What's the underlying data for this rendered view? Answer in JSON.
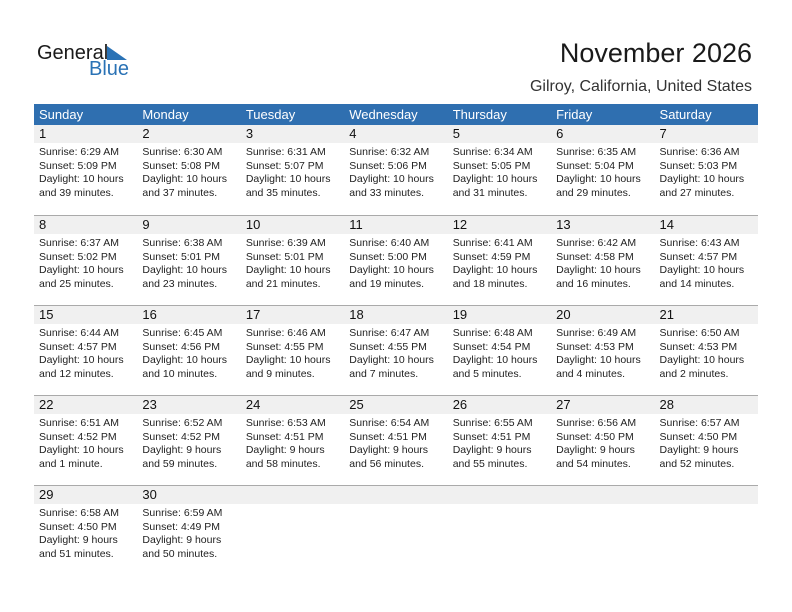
{
  "logo": {
    "word1": "General",
    "word2": "Blue"
  },
  "title": "November 2026",
  "location": "Gilroy, California, United States",
  "weekdays": [
    "Sunday",
    "Monday",
    "Tuesday",
    "Wednesday",
    "Thursday",
    "Friday",
    "Saturday"
  ],
  "weeks": [
    [
      {
        "d": "1",
        "sr": "Sunrise: 6:29 AM",
        "ss": "Sunset: 5:09 PM",
        "dl": "Daylight: 10 hours",
        "dm": "and 39 minutes."
      },
      {
        "d": "2",
        "sr": "Sunrise: 6:30 AM",
        "ss": "Sunset: 5:08 PM",
        "dl": "Daylight: 10 hours",
        "dm": "and 37 minutes."
      },
      {
        "d": "3",
        "sr": "Sunrise: 6:31 AM",
        "ss": "Sunset: 5:07 PM",
        "dl": "Daylight: 10 hours",
        "dm": "and 35 minutes."
      },
      {
        "d": "4",
        "sr": "Sunrise: 6:32 AM",
        "ss": "Sunset: 5:06 PM",
        "dl": "Daylight: 10 hours",
        "dm": "and 33 minutes."
      },
      {
        "d": "5",
        "sr": "Sunrise: 6:34 AM",
        "ss": "Sunset: 5:05 PM",
        "dl": "Daylight: 10 hours",
        "dm": "and 31 minutes."
      },
      {
        "d": "6",
        "sr": "Sunrise: 6:35 AM",
        "ss": "Sunset: 5:04 PM",
        "dl": "Daylight: 10 hours",
        "dm": "and 29 minutes."
      },
      {
        "d": "7",
        "sr": "Sunrise: 6:36 AM",
        "ss": "Sunset: 5:03 PM",
        "dl": "Daylight: 10 hours",
        "dm": "and 27 minutes."
      }
    ],
    [
      {
        "d": "8",
        "sr": "Sunrise: 6:37 AM",
        "ss": "Sunset: 5:02 PM",
        "dl": "Daylight: 10 hours",
        "dm": "and 25 minutes."
      },
      {
        "d": "9",
        "sr": "Sunrise: 6:38 AM",
        "ss": "Sunset: 5:01 PM",
        "dl": "Daylight: 10 hours",
        "dm": "and 23 minutes."
      },
      {
        "d": "10",
        "sr": "Sunrise: 6:39 AM",
        "ss": "Sunset: 5:01 PM",
        "dl": "Daylight: 10 hours",
        "dm": "and 21 minutes."
      },
      {
        "d": "11",
        "sr": "Sunrise: 6:40 AM",
        "ss": "Sunset: 5:00 PM",
        "dl": "Daylight: 10 hours",
        "dm": "and 19 minutes."
      },
      {
        "d": "12",
        "sr": "Sunrise: 6:41 AM",
        "ss": "Sunset: 4:59 PM",
        "dl": "Daylight: 10 hours",
        "dm": "and 18 minutes."
      },
      {
        "d": "13",
        "sr": "Sunrise: 6:42 AM",
        "ss": "Sunset: 4:58 PM",
        "dl": "Daylight: 10 hours",
        "dm": "and 16 minutes."
      },
      {
        "d": "14",
        "sr": "Sunrise: 6:43 AM",
        "ss": "Sunset: 4:57 PM",
        "dl": "Daylight: 10 hours",
        "dm": "and 14 minutes."
      }
    ],
    [
      {
        "d": "15",
        "sr": "Sunrise: 6:44 AM",
        "ss": "Sunset: 4:57 PM",
        "dl": "Daylight: 10 hours",
        "dm": "and 12 minutes."
      },
      {
        "d": "16",
        "sr": "Sunrise: 6:45 AM",
        "ss": "Sunset: 4:56 PM",
        "dl": "Daylight: 10 hours",
        "dm": "and 10 minutes."
      },
      {
        "d": "17",
        "sr": "Sunrise: 6:46 AM",
        "ss": "Sunset: 4:55 PM",
        "dl": "Daylight: 10 hours",
        "dm": "and 9 minutes."
      },
      {
        "d": "18",
        "sr": "Sunrise: 6:47 AM",
        "ss": "Sunset: 4:55 PM",
        "dl": "Daylight: 10 hours",
        "dm": "and 7 minutes."
      },
      {
        "d": "19",
        "sr": "Sunrise: 6:48 AM",
        "ss": "Sunset: 4:54 PM",
        "dl": "Daylight: 10 hours",
        "dm": "and 5 minutes."
      },
      {
        "d": "20",
        "sr": "Sunrise: 6:49 AM",
        "ss": "Sunset: 4:53 PM",
        "dl": "Daylight: 10 hours",
        "dm": "and 4 minutes."
      },
      {
        "d": "21",
        "sr": "Sunrise: 6:50 AM",
        "ss": "Sunset: 4:53 PM",
        "dl": "Daylight: 10 hours",
        "dm": "and 2 minutes."
      }
    ],
    [
      {
        "d": "22",
        "sr": "Sunrise: 6:51 AM",
        "ss": "Sunset: 4:52 PM",
        "dl": "Daylight: 10 hours",
        "dm": "and 1 minute."
      },
      {
        "d": "23",
        "sr": "Sunrise: 6:52 AM",
        "ss": "Sunset: 4:52 PM",
        "dl": "Daylight: 9 hours",
        "dm": "and 59 minutes."
      },
      {
        "d": "24",
        "sr": "Sunrise: 6:53 AM",
        "ss": "Sunset: 4:51 PM",
        "dl": "Daylight: 9 hours",
        "dm": "and 58 minutes."
      },
      {
        "d": "25",
        "sr": "Sunrise: 6:54 AM",
        "ss": "Sunset: 4:51 PM",
        "dl": "Daylight: 9 hours",
        "dm": "and 56 minutes."
      },
      {
        "d": "26",
        "sr": "Sunrise: 6:55 AM",
        "ss": "Sunset: 4:51 PM",
        "dl": "Daylight: 9 hours",
        "dm": "and 55 minutes."
      },
      {
        "d": "27",
        "sr": "Sunrise: 6:56 AM",
        "ss": "Sunset: 4:50 PM",
        "dl": "Daylight: 9 hours",
        "dm": "and 54 minutes."
      },
      {
        "d": "28",
        "sr": "Sunrise: 6:57 AM",
        "ss": "Sunset: 4:50 PM",
        "dl": "Daylight: 9 hours",
        "dm": "and 52 minutes."
      }
    ],
    [
      {
        "d": "29",
        "sr": "Sunrise: 6:58 AM",
        "ss": "Sunset: 4:50 PM",
        "dl": "Daylight: 9 hours",
        "dm": "and 51 minutes."
      },
      {
        "d": "30",
        "sr": "Sunrise: 6:59 AM",
        "ss": "Sunset: 4:49 PM",
        "dl": "Daylight: 9 hours",
        "dm": "and 50 minutes."
      },
      {
        "d": "",
        "sr": "",
        "ss": "",
        "dl": "",
        "dm": ""
      },
      {
        "d": "",
        "sr": "",
        "ss": "",
        "dl": "",
        "dm": ""
      },
      {
        "d": "",
        "sr": "",
        "ss": "",
        "dl": "",
        "dm": ""
      },
      {
        "d": "",
        "sr": "",
        "ss": "",
        "dl": "",
        "dm": ""
      },
      {
        "d": "",
        "sr": "",
        "ss": "",
        "dl": "",
        "dm": ""
      }
    ]
  ]
}
